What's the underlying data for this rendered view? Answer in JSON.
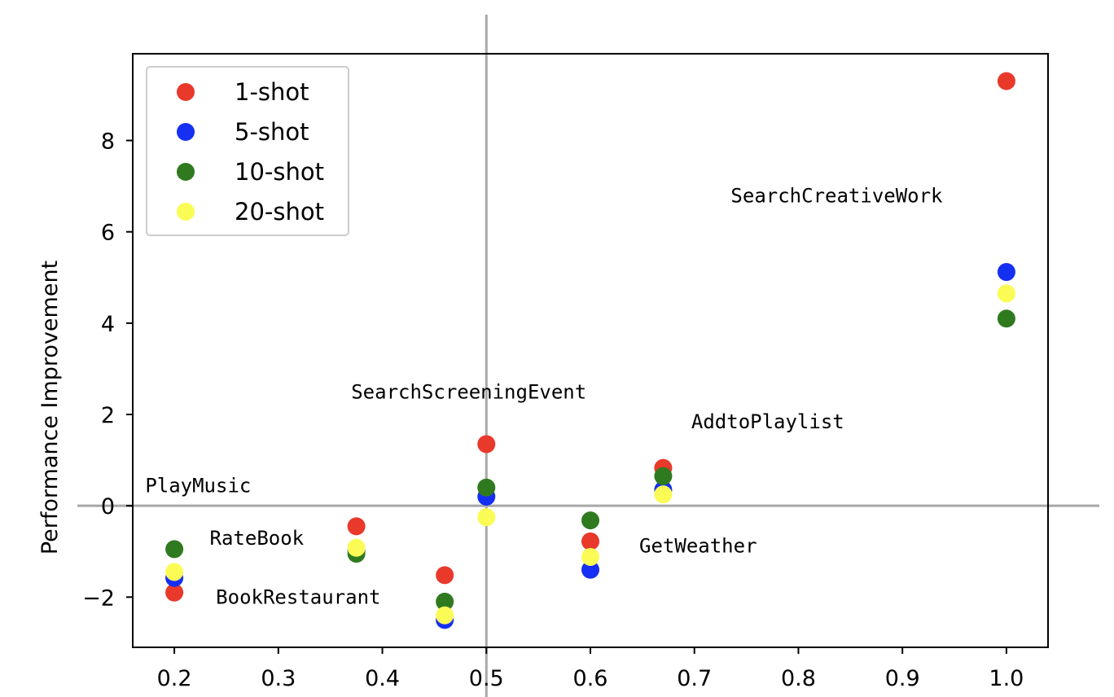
{
  "chart_data": {
    "type": "scatter",
    "ylabel": "Performance Improvement",
    "xlabel": "",
    "title": "",
    "xlim": [
      0.16,
      1.04
    ],
    "ylim": [
      -3.1,
      9.9
    ],
    "xticks": [
      "0.2",
      "0.3",
      "0.4",
      "0.5",
      "0.6",
      "0.7",
      "0.8",
      "0.9",
      "1.0"
    ],
    "yticks": [
      "−2",
      "0",
      "2",
      "4",
      "6",
      "8"
    ],
    "xtick_values": [
      0.2,
      0.3,
      0.4,
      0.5,
      0.6,
      0.7,
      0.8,
      0.9,
      1.0
    ],
    "ytick_values": [
      -2,
      0,
      2,
      4,
      6,
      8
    ],
    "reference_lines": {
      "x": 0.5,
      "y": 0
    },
    "grid": false,
    "legend_position": "top-left",
    "series": [
      {
        "name": "1-shot",
        "color": "#e8392b",
        "points": [
          [
            0.2,
            -1.9
          ],
          [
            0.375,
            -0.45
          ],
          [
            0.46,
            -1.52
          ],
          [
            0.5,
            1.35
          ],
          [
            0.6,
            -0.78
          ],
          [
            0.67,
            0.83
          ],
          [
            1.0,
            9.3
          ]
        ]
      },
      {
        "name": "5-shot",
        "color": "#1530f2",
        "points": [
          [
            0.2,
            -1.58
          ],
          [
            0.375,
            -0.98
          ],
          [
            0.46,
            -2.5
          ],
          [
            0.5,
            0.2
          ],
          [
            0.6,
            -1.4
          ],
          [
            0.67,
            0.35
          ],
          [
            1.0,
            5.12
          ]
        ]
      },
      {
        "name": "10-shot",
        "color": "#2f7a1f",
        "points": [
          [
            0.2,
            -0.95
          ],
          [
            0.375,
            -1.05
          ],
          [
            0.46,
            -2.1
          ],
          [
            0.5,
            0.4
          ],
          [
            0.6,
            -0.32
          ],
          [
            0.67,
            0.65
          ],
          [
            1.0,
            4.1
          ]
        ]
      },
      {
        "name": "20-shot",
        "color": "#fbfb55",
        "points": [
          [
            0.2,
            -1.45
          ],
          [
            0.375,
            -0.92
          ],
          [
            0.46,
            -2.4
          ],
          [
            0.5,
            -0.25
          ],
          [
            0.6,
            -1.12
          ],
          [
            0.67,
            0.25
          ],
          [
            1.0,
            4.65
          ]
        ]
      }
    ],
    "annotations": [
      {
        "text": "SearchCreativeWork",
        "x": 0.735,
        "y": 6.65
      },
      {
        "text": "SearchScreeningEvent",
        "x": 0.37,
        "y": 2.35
      },
      {
        "text": "AddtoPlaylist",
        "x": 0.697,
        "y": 1.7
      },
      {
        "text": "PlayMusic",
        "x": 0.172,
        "y": 0.3
      },
      {
        "text": "RateBook",
        "x": 0.234,
        "y": -0.85
      },
      {
        "text": "GetWeather",
        "x": 0.647,
        "y": -1.02
      },
      {
        "text": "BookRestaurant",
        "x": 0.24,
        "y": -2.15
      }
    ]
  }
}
